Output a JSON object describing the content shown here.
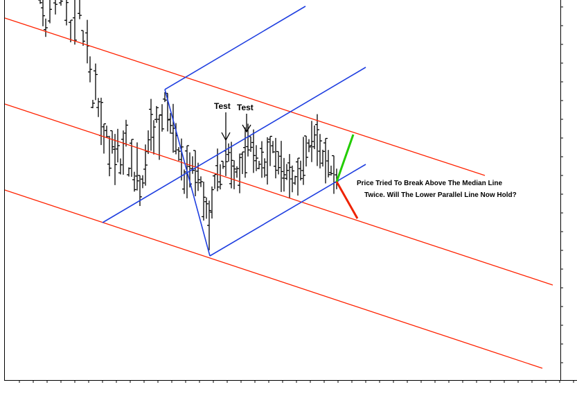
{
  "chart_data": {
    "type": "bar",
    "subtype": "ohlc-price-bars-with-andrews-pitchfork",
    "title": "",
    "xlabel": "",
    "ylabel": "",
    "grid": false,
    "annotations": {
      "test_1": "Test",
      "test_2": "Test",
      "note_line_1": "Price Tried To Break Above The Median Line",
      "note_line_2": "Twice. Will The Lower Parallel Line Now Hold?"
    },
    "colors": {
      "price_bars": "#000000",
      "red_channel": "#ff2200",
      "blue_pitchfork": "#1f3fe0",
      "up_arrow": "#22cc00",
      "down_arrow": "#ee2200",
      "frame": "#000000"
    }
  }
}
